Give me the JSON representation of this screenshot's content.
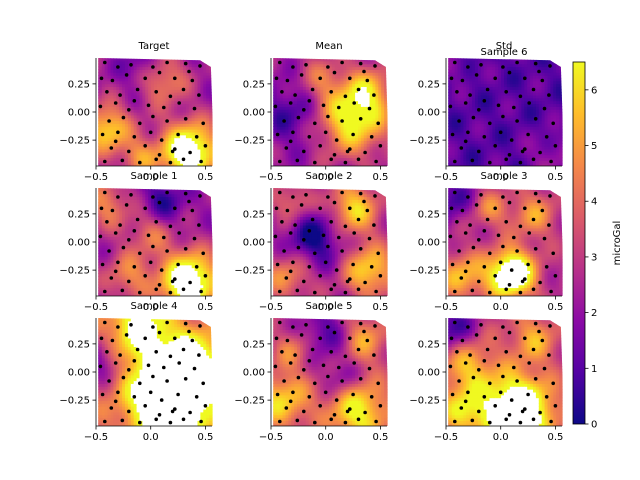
{
  "chart_data": {
    "type": "heatmap",
    "colormap": "plasma",
    "colormap_stops": [
      "#0d0887",
      "#5302a3",
      "#8b0aa5",
      "#b83289",
      "#db5c68",
      "#f48849",
      "#febd2a",
      "#f0f921"
    ],
    "marker_color": "#000000",
    "xlim": [
      -0.5,
      0.56
    ],
    "ylim": [
      -0.48,
      0.48
    ],
    "x_ticks": [
      "−0.5",
      "0.0",
      "0.5"
    ],
    "y_ticks": [
      "0.25",
      "0.00",
      "−0.25"
    ],
    "colorbar": {
      "label": "microGal",
      "range": [
        0,
        6.5
      ],
      "ticks": [
        "0",
        "1",
        "2",
        "3",
        "4",
        "5",
        "6"
      ]
    },
    "panels": [
      {
        "title": "Target",
        "style": "target"
      },
      {
        "title": "Mean",
        "style": "mean"
      },
      {
        "title": "Std",
        "style": "std",
        "extra_title": "Sample 6"
      },
      {
        "title": "Sample 1",
        "style": "s1"
      },
      {
        "title": "Sample 2",
        "style": "s2"
      },
      {
        "title": "Sample 3",
        "style": "s3"
      },
      {
        "title": "Sample 4",
        "style": "s4"
      },
      {
        "title": "Sample 5",
        "style": "s5"
      },
      {
        "title": "",
        "style": "s6"
      }
    ],
    "stations": [
      [
        -0.42,
        0.44
      ],
      [
        -0.3,
        0.4
      ],
      [
        -0.18,
        0.42
      ],
      [
        0.02,
        0.4
      ],
      [
        0.15,
        0.44
      ],
      [
        0.32,
        0.43
      ],
      [
        0.45,
        0.41
      ],
      [
        -0.45,
        0.3
      ],
      [
        -0.35,
        0.28
      ],
      [
        -0.22,
        0.33
      ],
      [
        -0.05,
        0.3
      ],
      [
        0.08,
        0.35
      ],
      [
        0.22,
        0.3
      ],
      [
        0.38,
        0.28
      ],
      [
        -0.4,
        0.18
      ],
      [
        -0.28,
        0.15
      ],
      [
        -0.12,
        0.2
      ],
      [
        0.05,
        0.18
      ],
      [
        0.18,
        0.14
      ],
      [
        0.3,
        0.2
      ],
      [
        0.44,
        0.15
      ],
      [
        -0.46,
        0.05
      ],
      [
        -0.32,
        0.08
      ],
      [
        -0.2,
        0.02
      ],
      [
        -0.02,
        0.06
      ],
      [
        0.12,
        0.04
      ],
      [
        0.26,
        0.08
      ],
      [
        0.4,
        0.03
      ],
      [
        -0.38,
        -0.08
      ],
      [
        -0.25,
        -0.05
      ],
      [
        -0.1,
        -0.1
      ],
      [
        0.02,
        -0.04
      ],
      [
        0.15,
        -0.08
      ],
      [
        0.32,
        -0.06
      ],
      [
        0.48,
        -0.1
      ],
      [
        -0.44,
        -0.2
      ],
      [
        -0.3,
        -0.18
      ],
      [
        -0.15,
        -0.22
      ],
      [
        0.0,
        -0.18
      ],
      [
        0.1,
        -0.25
      ],
      [
        0.25,
        -0.2
      ],
      [
        0.42,
        -0.22
      ],
      [
        -0.36,
        -0.32
      ],
      [
        -0.2,
        -0.35
      ],
      [
        -0.05,
        -0.3
      ],
      [
        0.08,
        -0.38
      ],
      [
        0.22,
        -0.33
      ],
      [
        0.36,
        -0.36
      ],
      [
        0.5,
        -0.3
      ],
      [
        -0.42,
        -0.44
      ],
      [
        -0.26,
        -0.43
      ],
      [
        -0.1,
        -0.45
      ],
      [
        0.05,
        -0.42
      ],
      [
        0.18,
        -0.45
      ],
      [
        0.3,
        -0.42
      ],
      [
        0.46,
        -0.44
      ],
      [
        -0.15,
        0.1
      ],
      [
        0.2,
        -0.35
      ],
      [
        -0.32,
        -0.26
      ],
      [
        0.35,
        0.36
      ]
    ]
  }
}
